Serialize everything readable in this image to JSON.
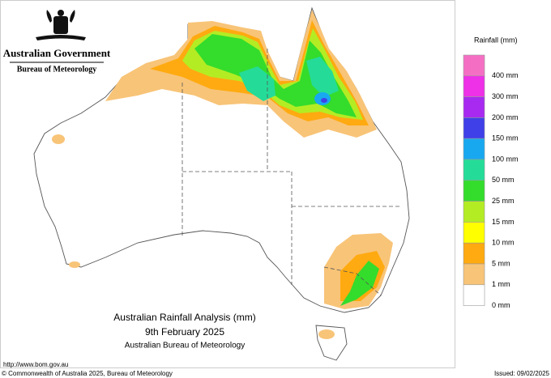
{
  "header": {
    "agency": "Australian Government",
    "bureau": "Bureau of Meteorology"
  },
  "legend": {
    "title": "Rainfall (mm)",
    "items": [
      {
        "label": "400 mm",
        "color": "#f46fc4"
      },
      {
        "label": "300 mm",
        "color": "#ee30e6"
      },
      {
        "label": "200 mm",
        "color": "#a82af0"
      },
      {
        "label": "150 mm",
        "color": "#4040e8"
      },
      {
        "label": "100 mm",
        "color": "#18a8f0"
      },
      {
        "label": "50 mm",
        "color": "#24dc98"
      },
      {
        "label": "25 mm",
        "color": "#34dc2c"
      },
      {
        "label": "15 mm",
        "color": "#b4ec24"
      },
      {
        "label": "10 mm",
        "color": "#ffff00"
      },
      {
        "label": "5 mm",
        "color": "#ffaa10"
      },
      {
        "label": "1 mm",
        "color": "#f8c478"
      },
      {
        "label": "0 mm",
        "color": "#ffffff"
      }
    ]
  },
  "map_title": {
    "line1": "Australian Rainfall Analysis (mm)",
    "line2": "9th February 2025",
    "line3": "Australian Bureau of Meteorology"
  },
  "footer": {
    "url": "http://www.bom.gov.au",
    "copyright": "© Commonwealth of Australia 2025, Bureau of Meteorology",
    "issued": "Issued: 09/02/2025"
  }
}
